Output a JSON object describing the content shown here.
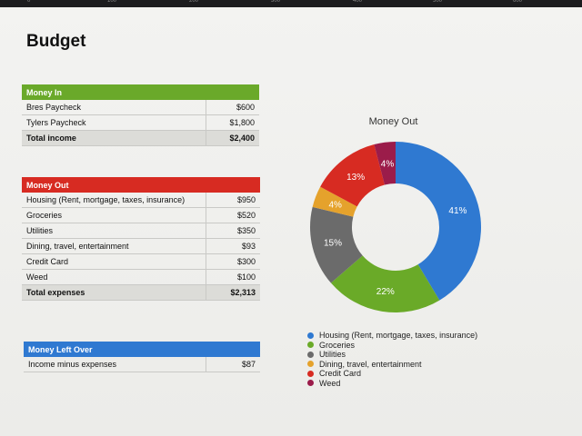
{
  "page": {
    "title": "Budget"
  },
  "ruler": {
    "ticks": [
      "0",
      "100",
      "200",
      "300",
      "400",
      "500",
      "600"
    ]
  },
  "money_in": {
    "header": "Money In",
    "rows": [
      {
        "label": "Bres Paycheck",
        "value": "$600"
      },
      {
        "label": "Tylers Paycheck",
        "value": "$1,800"
      }
    ],
    "total": {
      "label": "Total income",
      "value": "$2,400"
    }
  },
  "money_out": {
    "header": "Money Out",
    "rows": [
      {
        "label": "Housing (Rent, mortgage, taxes, insurance)",
        "value": "$950"
      },
      {
        "label": "Groceries",
        "value": "$520"
      },
      {
        "label": "Utilities",
        "value": "$350"
      },
      {
        "label": "Dining, travel, entertainment",
        "value": "$93"
      },
      {
        "label": "Credit Card",
        "value": "$300"
      },
      {
        "label": "Weed",
        "value": "$100"
      }
    ],
    "total": {
      "label": "Total expenses",
      "value": "$2,313"
    }
  },
  "money_left": {
    "header": "Money Left Over",
    "row": {
      "label": "Income minus expenses",
      "value": "$87"
    }
  },
  "colors": {
    "money_in_header": "#6aa92a",
    "money_out_header": "#d72b22",
    "money_left_header": "#2f79d1"
  },
  "chart_data": {
    "type": "pie",
    "title": "Money Out",
    "donut": true,
    "legend_position": "bottom",
    "slices": [
      {
        "label": "Housing (Rent, mortgage, taxes, insurance)",
        "value": 41,
        "display": "41%",
        "color": "#2f79d1"
      },
      {
        "label": "Groceries",
        "value": 22,
        "display": "22%",
        "color": "#6aaa28"
      },
      {
        "label": "Utilities",
        "value": 15,
        "display": "15%",
        "color": "#6b6b6b"
      },
      {
        "label": "Dining, travel, entertainment",
        "value": 4,
        "display": "4%",
        "color": "#e5a22c"
      },
      {
        "label": "Credit Card",
        "value": 13,
        "display": "13%",
        "color": "#d72b22"
      },
      {
        "label": "Weed",
        "value": 4,
        "display": "4%",
        "color": "#9b1c4a"
      }
    ]
  }
}
